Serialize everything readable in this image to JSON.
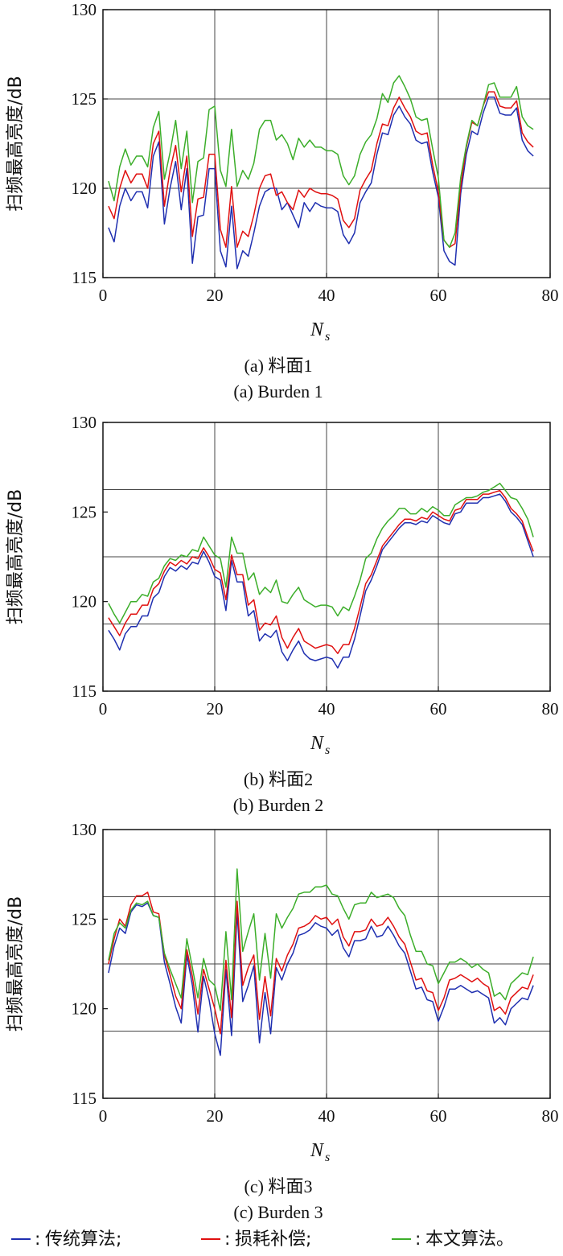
{
  "chart_data": [
    {
      "type": "line",
      "ylabel": "扫频最高亮度/dB",
      "xlabel": "N",
      "xlabel_sub": "s",
      "caption_cn": "(a) 料面1",
      "caption_en": "(a) Burden 1",
      "xlim": [
        0,
        80
      ],
      "ylim": [
        115,
        130
      ],
      "xticks": [
        0,
        20,
        40,
        60,
        80
      ],
      "yticks": [
        115,
        120,
        125,
        130
      ],
      "hgrid": [
        120,
        125
      ],
      "vgrid": [
        20,
        40,
        60
      ],
      "grid": true,
      "x": [
        1,
        2,
        3,
        4,
        5,
        6,
        7,
        8,
        9,
        10,
        11,
        12,
        13,
        14,
        15,
        16,
        17,
        18,
        19,
        20,
        21,
        22,
        23,
        24,
        25,
        26,
        27,
        28,
        29,
        30,
        31,
        32,
        33,
        34,
        35,
        36,
        37,
        38,
        39,
        40,
        41,
        42,
        43,
        44,
        45,
        46,
        47,
        48,
        49,
        50,
        51,
        52,
        53,
        54,
        55,
        56,
        57,
        58,
        59,
        60,
        61,
        62,
        63,
        64,
        65,
        66,
        67,
        68,
        69,
        70,
        71,
        72,
        73,
        74,
        75,
        76,
        77
      ],
      "series": [
        {
          "name": "传统算法",
          "color": "#1f2fb0",
          "values": [
            117.8,
            117.0,
            119.0,
            120.0,
            119.3,
            119.8,
            119.8,
            118.9,
            121.8,
            122.6,
            118.0,
            120.0,
            121.5,
            118.8,
            121.1,
            115.8,
            118.4,
            118.5,
            121.1,
            121.1,
            116.5,
            115.6,
            119.0,
            115.5,
            116.5,
            116.2,
            117.5,
            119.0,
            119.8,
            120.0,
            120.0,
            118.8,
            119.2,
            118.5,
            117.8,
            119.2,
            118.7,
            119.2,
            119.0,
            118.9,
            118.9,
            118.7,
            117.4,
            116.9,
            117.5,
            119.2,
            119.8,
            120.3,
            121.9,
            123.1,
            123.0,
            124.1,
            124.6,
            124.0,
            123.6,
            122.7,
            122.5,
            122.6,
            120.9,
            119.5,
            116.5,
            115.9,
            115.7,
            119.7,
            121.9,
            123.2,
            123.0,
            124.2,
            125.1,
            125.1,
            124.2,
            124.1,
            124.1,
            124.5,
            122.7,
            122.1,
            121.8
          ]
        },
        {
          "name": "损耗补偿",
          "color": "#e01010",
          "values": [
            119.0,
            118.3,
            120.0,
            121.0,
            120.3,
            120.8,
            120.8,
            120.0,
            122.5,
            123.2,
            119.0,
            121.0,
            122.4,
            119.8,
            121.8,
            117.3,
            119.4,
            119.5,
            121.9,
            121.9,
            117.7,
            116.7,
            120.1,
            116.7,
            117.6,
            117.3,
            118.5,
            120.0,
            120.7,
            120.8,
            119.6,
            119.8,
            119.2,
            118.8,
            119.9,
            119.5,
            120.0,
            119.8,
            119.7,
            119.7,
            119.6,
            119.4,
            118.2,
            117.8,
            118.3,
            119.9,
            120.5,
            121.0,
            122.5,
            123.6,
            123.5,
            124.5,
            125.1,
            124.5,
            124.0,
            123.2,
            123.0,
            123.1,
            121.3,
            119.8,
            117.1,
            116.7,
            116.9,
            120.1,
            122.3,
            123.7,
            123.5,
            124.6,
            125.4,
            125.4,
            124.6,
            124.5,
            124.5,
            124.9,
            123.1,
            122.6,
            122.3
          ]
        },
        {
          "name": "本文算法",
          "color": "#3cae2a",
          "values": [
            120.4,
            119.3,
            121.2,
            122.2,
            121.3,
            121.8,
            121.8,
            121.2,
            123.4,
            124.3,
            120.5,
            122.0,
            123.8,
            121.1,
            123.2,
            119.2,
            121.5,
            121.7,
            124.4,
            124.6,
            121.0,
            120.1,
            123.3,
            120.1,
            121.0,
            120.5,
            121.4,
            123.3,
            123.8,
            123.8,
            122.7,
            123.0,
            122.5,
            121.6,
            122.8,
            122.3,
            122.7,
            122.3,
            122.3,
            122.1,
            122.1,
            121.9,
            120.7,
            120.2,
            120.7,
            121.9,
            122.6,
            123.0,
            123.9,
            125.3,
            124.8,
            125.9,
            126.3,
            125.7,
            125.0,
            124.0,
            123.8,
            123.9,
            122.2,
            120.6,
            117.1,
            116.7,
            117.5,
            120.6,
            122.4,
            123.8,
            123.5,
            124.6,
            125.8,
            125.9,
            125.1,
            125.1,
            125.1,
            125.7,
            124.0,
            123.5,
            123.3
          ]
        }
      ]
    },
    {
      "type": "line",
      "ylabel": "扫频最高亮度/dB",
      "xlabel": "N",
      "xlabel_sub": "s",
      "caption_cn": "(b) 料面2",
      "caption_en": "(b) Burden 2",
      "xlim": [
        0,
        80
      ],
      "ylim": [
        115,
        130
      ],
      "xticks": [
        0,
        20,
        40,
        60,
        80
      ],
      "yticks": [
        115,
        120,
        125,
        130
      ],
      "hgrid": [
        118.75,
        122.5,
        126.25
      ],
      "vgrid": [
        20,
        40,
        60
      ],
      "grid": true,
      "x": [
        1,
        2,
        3,
        4,
        5,
        6,
        7,
        8,
        9,
        10,
        11,
        12,
        13,
        14,
        15,
        16,
        17,
        18,
        19,
        20,
        21,
        22,
        23,
        24,
        25,
        26,
        27,
        28,
        29,
        30,
        31,
        32,
        33,
        34,
        35,
        36,
        37,
        38,
        39,
        40,
        41,
        42,
        43,
        44,
        45,
        46,
        47,
        48,
        49,
        50,
        51,
        52,
        53,
        54,
        55,
        56,
        57,
        58,
        59,
        60,
        61,
        62,
        63,
        64,
        65,
        66,
        67,
        68,
        69,
        70,
        71,
        72,
        73,
        74,
        75,
        76,
        77
      ],
      "series": [
        {
          "name": "传统算法",
          "color": "#1f2fb0",
          "values": [
            118.4,
            117.9,
            117.3,
            118.2,
            118.6,
            118.6,
            119.2,
            119.2,
            120.2,
            120.5,
            121.4,
            121.9,
            121.7,
            122.0,
            121.8,
            122.2,
            122.1,
            122.8,
            122.2,
            121.4,
            121.2,
            119.5,
            122.3,
            121.1,
            121.1,
            119.2,
            119.5,
            117.8,
            118.2,
            118.0,
            118.4,
            117.2,
            116.7,
            117.3,
            117.8,
            117.1,
            116.8,
            116.7,
            116.8,
            116.9,
            116.8,
            116.3,
            116.9,
            116.9,
            117.9,
            119.2,
            120.6,
            121.2,
            122.0,
            122.9,
            123.3,
            123.7,
            124.1,
            124.4,
            124.4,
            124.3,
            124.5,
            124.4,
            124.8,
            124.6,
            124.4,
            124.3,
            124.9,
            125.0,
            125.5,
            125.5,
            125.5,
            125.8,
            125.8,
            125.9,
            126.0,
            125.6,
            125.0,
            124.7,
            124.3,
            123.4,
            122.5
          ]
        },
        {
          "name": "损耗补偿",
          "color": "#e01010",
          "values": [
            119.1,
            118.6,
            118.1,
            118.8,
            119.3,
            119.3,
            119.8,
            119.8,
            120.7,
            121.0,
            121.7,
            122.2,
            122.0,
            122.3,
            122.1,
            122.5,
            122.4,
            123.0,
            122.5,
            121.8,
            121.6,
            120.1,
            122.6,
            121.5,
            121.5,
            119.8,
            120.1,
            118.4,
            118.8,
            118.7,
            119.2,
            118.0,
            117.4,
            118.0,
            118.5,
            117.8,
            117.6,
            117.4,
            117.5,
            117.6,
            117.5,
            117.1,
            117.6,
            117.6,
            118.5,
            119.7,
            121.0,
            121.5,
            122.3,
            123.1,
            123.5,
            123.9,
            124.3,
            124.6,
            124.6,
            124.5,
            124.7,
            124.6,
            125.0,
            124.8,
            124.6,
            124.5,
            125.1,
            125.2,
            125.7,
            125.7,
            125.7,
            126.0,
            126.0,
            126.1,
            126.2,
            125.8,
            125.2,
            124.9,
            124.5,
            123.6,
            122.8
          ]
        },
        {
          "name": "本文算法",
          "color": "#3cae2a",
          "values": [
            119.9,
            119.3,
            118.8,
            119.4,
            120.0,
            120.0,
            120.4,
            120.3,
            121.1,
            121.3,
            122.0,
            122.4,
            122.3,
            122.6,
            122.5,
            122.9,
            122.8,
            123.6,
            123.1,
            122.6,
            122.4,
            120.8,
            123.6,
            122.7,
            122.7,
            121.2,
            121.6,
            120.4,
            120.8,
            120.5,
            121.2,
            120.0,
            119.9,
            120.4,
            120.8,
            120.1,
            119.9,
            119.7,
            119.8,
            119.8,
            119.7,
            119.2,
            119.7,
            119.5,
            120.3,
            121.2,
            122.4,
            122.7,
            123.5,
            124.1,
            124.5,
            124.8,
            125.2,
            125.2,
            124.9,
            124.9,
            125.2,
            125.0,
            125.3,
            125.1,
            124.8,
            124.8,
            125.4,
            125.6,
            125.8,
            125.8,
            125.9,
            126.1,
            126.2,
            126.4,
            126.6,
            126.2,
            125.8,
            125.7,
            125.2,
            124.6,
            123.6
          ]
        }
      ]
    },
    {
      "type": "line",
      "ylabel": "扫频最高亮度/dB",
      "xlabel": "N",
      "xlabel_sub": "s",
      "caption_cn": "(c) 料面3",
      "caption_en": "(c) Burden 3",
      "xlim": [
        0,
        80
      ],
      "ylim": [
        115,
        130
      ],
      "xticks": [
        0,
        20,
        40,
        60,
        80
      ],
      "yticks": [
        115,
        120,
        125,
        130
      ],
      "hgrid": [
        118.75,
        122.5,
        126.25
      ],
      "vgrid": [
        20,
        40,
        60
      ],
      "grid": true,
      "x": [
        1,
        2,
        3,
        4,
        5,
        6,
        7,
        8,
        9,
        10,
        11,
        12,
        13,
        14,
        15,
        16,
        17,
        18,
        19,
        20,
        21,
        22,
        23,
        24,
        25,
        26,
        27,
        28,
        29,
        30,
        31,
        32,
        33,
        34,
        35,
        36,
        37,
        38,
        39,
        40,
        41,
        42,
        43,
        44,
        45,
        46,
        47,
        48,
        49,
        50,
        51,
        52,
        53,
        54,
        55,
        56,
        57,
        58,
        59,
        60,
        61,
        62,
        63,
        64,
        65,
        66,
        67,
        68,
        69,
        70,
        71,
        72,
        73,
        74,
        75,
        76,
        77
      ],
      "series": [
        {
          "name": "传统算法",
          "color": "#1f2fb0",
          "values": [
            122.0,
            123.5,
            124.5,
            124.2,
            125.4,
            125.8,
            125.7,
            125.9,
            125.2,
            125.1,
            122.6,
            121.4,
            120.1,
            119.2,
            123.0,
            121.3,
            118.7,
            121.8,
            120.5,
            118.6,
            117.4,
            122.2,
            118.5,
            125.4,
            120.4,
            121.3,
            122.4,
            118.1,
            120.9,
            118.6,
            122.3,
            121.6,
            122.5,
            123.1,
            124.1,
            124.2,
            124.4,
            124.8,
            124.6,
            124.5,
            124.1,
            124.4,
            123.4,
            122.9,
            123.8,
            123.8,
            123.9,
            124.6,
            124.0,
            124.1,
            124.6,
            124.1,
            123.5,
            123.1,
            122.1,
            121.1,
            121.2,
            120.5,
            120.4,
            119.3,
            120.1,
            121.1,
            121.1,
            121.3,
            121.1,
            120.9,
            121.0,
            120.8,
            120.6,
            119.2,
            119.5,
            119.1,
            120.0,
            120.3,
            120.6,
            120.5,
            121.3
          ]
        },
        {
          "name": "损耗补偿",
          "color": "#e01010",
          "values": [
            122.5,
            123.9,
            125.0,
            124.6,
            125.8,
            126.3,
            126.3,
            126.5,
            125.4,
            125.3,
            123.0,
            121.9,
            120.7,
            120.0,
            123.3,
            121.8,
            119.7,
            122.2,
            121.1,
            120.0,
            118.6,
            122.7,
            119.5,
            126.0,
            121.3,
            122.3,
            123.0,
            119.4,
            121.8,
            119.6,
            122.8,
            122.1,
            123.0,
            123.6,
            124.5,
            124.6,
            124.8,
            125.2,
            125.0,
            125.1,
            124.7,
            125.0,
            124.0,
            123.5,
            124.3,
            124.3,
            124.4,
            125.0,
            124.6,
            124.7,
            125.1,
            124.6,
            124.0,
            123.6,
            122.6,
            121.6,
            121.7,
            121.0,
            120.9,
            119.9,
            120.6,
            121.6,
            121.7,
            121.9,
            121.7,
            121.5,
            121.7,
            121.4,
            121.2,
            119.9,
            120.1,
            119.7,
            120.6,
            120.9,
            121.2,
            121.1,
            121.9
          ]
        },
        {
          "name": "本文算法",
          "color": "#3cae2a",
          "values": [
            122.7,
            124.2,
            124.8,
            124.5,
            125.5,
            125.9,
            125.8,
            126.0,
            125.2,
            125.1,
            123.1,
            122.2,
            121.4,
            120.6,
            123.9,
            122.3,
            120.6,
            122.8,
            121.6,
            121.3,
            119.9,
            124.3,
            120.5,
            127.8,
            123.2,
            124.3,
            125.3,
            121.6,
            124.2,
            121.7,
            125.3,
            124.5,
            125.1,
            125.6,
            126.4,
            126.5,
            126.5,
            126.8,
            126.8,
            126.9,
            126.4,
            126.3,
            125.6,
            125.0,
            125.8,
            125.9,
            125.9,
            126.5,
            126.2,
            126.3,
            126.4,
            126.2,
            125.6,
            125.2,
            124.1,
            123.2,
            123.2,
            122.5,
            122.4,
            121.4,
            122.0,
            122.6,
            122.6,
            122.8,
            122.6,
            122.3,
            122.5,
            122.2,
            122.0,
            120.7,
            120.9,
            120.5,
            121.4,
            121.7,
            122.0,
            121.9,
            122.9
          ]
        }
      ]
    }
  ],
  "legend": {
    "items": [
      {
        "label": "传统算法;",
        "color": "#1f2fb0"
      },
      {
        "label": "损耗补偿;",
        "color": "#e01010"
      },
      {
        "label": "本文算法。",
        "color": "#3cae2a"
      }
    ],
    "separator": ":"
  }
}
